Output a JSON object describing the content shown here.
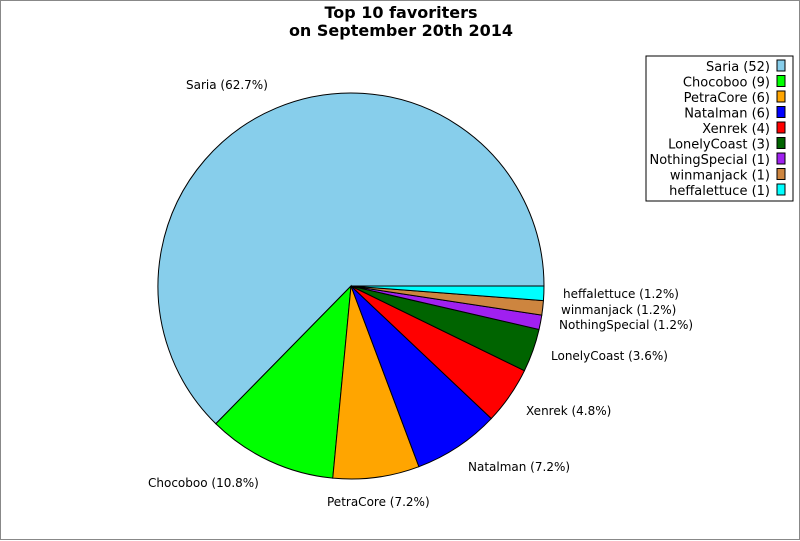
{
  "chart_data": {
    "type": "pie",
    "title": "Top 10 favoriters",
    "subtitle": "on September 20th 2014",
    "legend_position": "top-right",
    "slices": [
      {
        "name": "Saria",
        "count": 52,
        "percent_label": "62.7%",
        "color": "#87CEEB"
      },
      {
        "name": "Chocoboo",
        "count": 9,
        "percent_label": "10.8%",
        "color": "#00FF00"
      },
      {
        "name": "PetraCore",
        "count": 6,
        "percent_label": "7.2%",
        "color": "#FFA500"
      },
      {
        "name": "Natalman",
        "count": 6,
        "percent_label": "7.2%",
        "color": "#0000FF"
      },
      {
        "name": "Xenrek",
        "count": 4,
        "percent_label": "4.8%",
        "color": "#FF0000"
      },
      {
        "name": "LonelyCoast",
        "count": 3,
        "percent_label": "3.6%",
        "color": "#006400"
      },
      {
        "name": "NothingSpecial",
        "count": 1,
        "percent_label": "1.2%",
        "color": "#A020F0"
      },
      {
        "name": "winmanjack",
        "count": 1,
        "percent_label": "1.2%",
        "color": "#CD853F"
      },
      {
        "name": "heffalettuce",
        "count": 1,
        "percent_label": "1.2%",
        "color": "#00FFFF"
      }
    ]
  }
}
